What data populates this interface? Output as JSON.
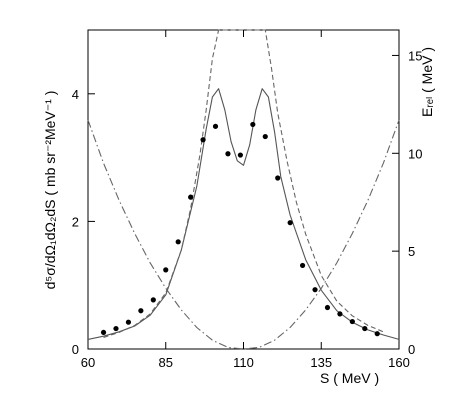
{
  "chart_data": {
    "type": "scatter",
    "xlabel": "S ( MeV )",
    "ylabel_left": "d⁵σ/dΩ₁dΩ₂dS ( mb sr⁻²MeV⁻¹ )",
    "ylabel_right": "Eᵣₑₗ ( MeV )",
    "xlim": [
      60,
      160
    ],
    "ylim_left": [
      0,
      5
    ],
    "ylim_right": [
      0,
      16.3
    ],
    "x_ticks": [
      60,
      85,
      110,
      135,
      160
    ],
    "y_left_ticks": [
      0,
      2,
      4
    ],
    "y_right_ticks": [
      0,
      5,
      10,
      15
    ],
    "grid": false,
    "series": [
      {
        "style": "points",
        "axis": "left",
        "x": [
          65,
          69,
          73,
          77,
          81,
          85,
          89,
          93,
          97,
          101,
          105,
          109,
          113,
          117,
          121,
          125,
          129,
          133,
          137,
          141,
          145,
          149,
          153
        ],
        "y": [
          0.26,
          0.32,
          0.42,
          0.6,
          0.77,
          1.24,
          1.68,
          2.38,
          3.28,
          3.49,
          3.06,
          3.04,
          3.52,
          3.33,
          2.68,
          1.98,
          1.31,
          0.93,
          0.65,
          0.55,
          0.43,
          0.32,
          0.24
        ]
      },
      {
        "style": "solid",
        "axis": "left",
        "x": [
          60,
          65,
          70,
          75,
          80,
          85,
          90,
          95,
          98,
          100,
          102,
          104,
          106,
          108,
          110,
          112,
          114,
          116,
          118,
          120,
          122,
          125,
          130,
          135,
          140,
          145,
          150,
          155,
          160
        ],
        "y": [
          0.15,
          0.2,
          0.27,
          0.36,
          0.53,
          0.85,
          1.55,
          2.55,
          3.45,
          3.95,
          4.08,
          3.75,
          3.25,
          2.95,
          2.88,
          3.2,
          3.75,
          4.08,
          3.95,
          3.4,
          2.7,
          2.1,
          1.4,
          0.92,
          0.6,
          0.42,
          0.3,
          0.22,
          0.15
        ]
      },
      {
        "style": "dashed",
        "axis": "left",
        "x": [
          65,
          70,
          75,
          80,
          85,
          90,
          93,
          96,
          98,
          100,
          102,
          117,
          119,
          121,
          124,
          127,
          130,
          135,
          140,
          145,
          150,
          155
        ],
        "y": [
          0.18,
          0.26,
          0.37,
          0.55,
          0.88,
          1.55,
          2.2,
          3.05,
          3.75,
          4.55,
          5.0,
          5.0,
          4.4,
          3.7,
          2.95,
          2.3,
          1.8,
          1.15,
          0.75,
          0.52,
          0.37,
          0.27
        ]
      },
      {
        "style": "dashdot",
        "axis": "right",
        "x": [
          60,
          65,
          70,
          75,
          80,
          85,
          90,
          95,
          100,
          105,
          110,
          115,
          120,
          125,
          130,
          135,
          140,
          145,
          150,
          155,
          160
        ],
        "y": [
          11.7,
          9.5,
          7.6,
          5.9,
          4.4,
          3.1,
          2.0,
          1.1,
          0.45,
          0.08,
          0.0,
          0.08,
          0.45,
          1.1,
          2.0,
          3.1,
          4.4,
          5.9,
          7.6,
          9.5,
          11.7
        ]
      }
    ]
  }
}
